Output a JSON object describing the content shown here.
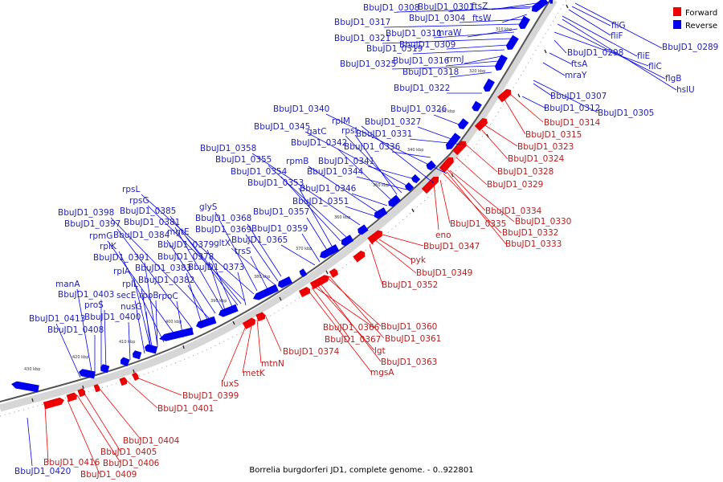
{
  "caption": "Borrelia burgdorferi JD1, complete genome. - 0..922801",
  "legend": {
    "forward": {
      "label": "Forward",
      "color": "#ee0000"
    },
    "reverse": {
      "label": "Reverse",
      "color": "#0000ee"
    }
  },
  "ruler_labels": [
    "310 kbp",
    "320 kbp",
    "330 kbp",
    "340 kbp",
    "350 kbp",
    "360 kbp",
    "370 kbp",
    "380 kbp",
    "390 kbp",
    "400 kbp",
    "410 kbp",
    "420 kbp",
    "430 kbp"
  ],
  "reverse_genes": [
    "ftsZ",
    "BbuJD1_0301",
    "BbuJD1_0308",
    "ftsW",
    "BbuJD1_0304",
    "BbuJD1_0317",
    "mraW",
    "BbuJD1_0311",
    "BbuJD1_0321",
    "BbuJD1_0309",
    "BbuJD1_0319",
    "rrmJ",
    "BbuJD1_0316",
    "BbuJD1_0325",
    "BbuJD1_0318",
    "BbuJD1_0322",
    "fliG",
    "fliF",
    "BbuJD1_0289",
    "BbuJD1_0298",
    "fliE",
    "ftsA",
    "fliC",
    "mraY",
    "flgB",
    "hslU",
    "BbuJD1_0307",
    "BbuJD1_0312",
    "BbuJD1_0305",
    "BbuJD1_0326",
    "BbuJD1_0340",
    "rplM",
    "BbuJD1_0327",
    "BbuJD1_0345",
    "gatC",
    "rpsI",
    "BbuJD1_0331",
    "BbuJD1_0342",
    "BbuJD1_0336",
    "BbuJD1_0358",
    "rpmB",
    "BbuJD1_0341",
    "BbuJD1_0355",
    "BbuJD1_0354",
    "BbuJD1_0344",
    "BbuJD1_0353",
    "BbuJD1_0346",
    "rpsL",
    "BbuJD1_0351",
    "rpsG",
    "glyS",
    "BbuJD1_0385",
    "BbuJD1_0357",
    "BbuJD1_0398",
    "BbuJD1_0368",
    "BbuJD1_0381",
    "BbuJD1_0397",
    "BbuJD1_0359",
    "mgtE",
    "BbuJD1_0369",
    "rpmG",
    "BbuJD1_0384",
    "BbuJD1_0365",
    "rplK",
    "gltX",
    "BbuJD1_0379",
    "trsS",
    "BbuJD1_0391",
    "BbuJD1_0378",
    "BbuJD1_0383",
    "BbuJD1_0373",
    "rplA",
    "BbuJD1_0382",
    "manA",
    "rplL",
    "BbuJD1_0403",
    "secE",
    "rpoB",
    "rpoC",
    "proS",
    "nusG",
    "BbuJD1_0400",
    "BbuJD1_0413",
    "BbuJD1_0408",
    "BbuJD1_0420"
  ],
  "forward_genes": [
    "BbuJD1_0314",
    "BbuJD1_0315",
    "BbuJD1_0323",
    "BbuJD1_0324",
    "BbuJD1_0328",
    "BbuJD1_0329",
    "BbuJD1_0334",
    "BbuJD1_0330",
    "BbuJD1_0335",
    "BbuJD1_0332",
    "eno",
    "BbuJD1_0333",
    "BbuJD1_0347",
    "pyk",
    "BbuJD1_0349",
    "BbuJD1_0352",
    "BbuJD1_0360",
    "BbuJD1_0366",
    "BbuJD1_0361",
    "BbuJD1_0367",
    "lgt",
    "BbuJD1_0374",
    "BbuJD1_0363",
    "mtnN",
    "mgsA",
    "metK",
    "luxS",
    "BbuJD1_0399",
    "BbuJD1_0401",
    "BbuJD1_0404",
    "BbuJD1_0405",
    "BbuJD1_0406",
    "BbuJD1_0416",
    "BbuJD1_0409"
  ]
}
